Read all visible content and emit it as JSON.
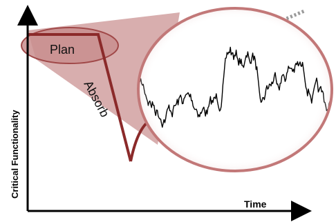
{
  "labels": {
    "y_axis": "Critical Functionality",
    "x_axis": "Time",
    "plan": "Plan",
    "absorb": "Absorb"
  },
  "colors": {
    "curve": "#8b2a2a",
    "ellipse_fill": "#c98e8e",
    "lens_fill": "#b86b6b",
    "circle_stroke": "#c27878",
    "axis": "#000000",
    "noise": "#000000",
    "dotted_line": "#9a9a9a"
  }
}
